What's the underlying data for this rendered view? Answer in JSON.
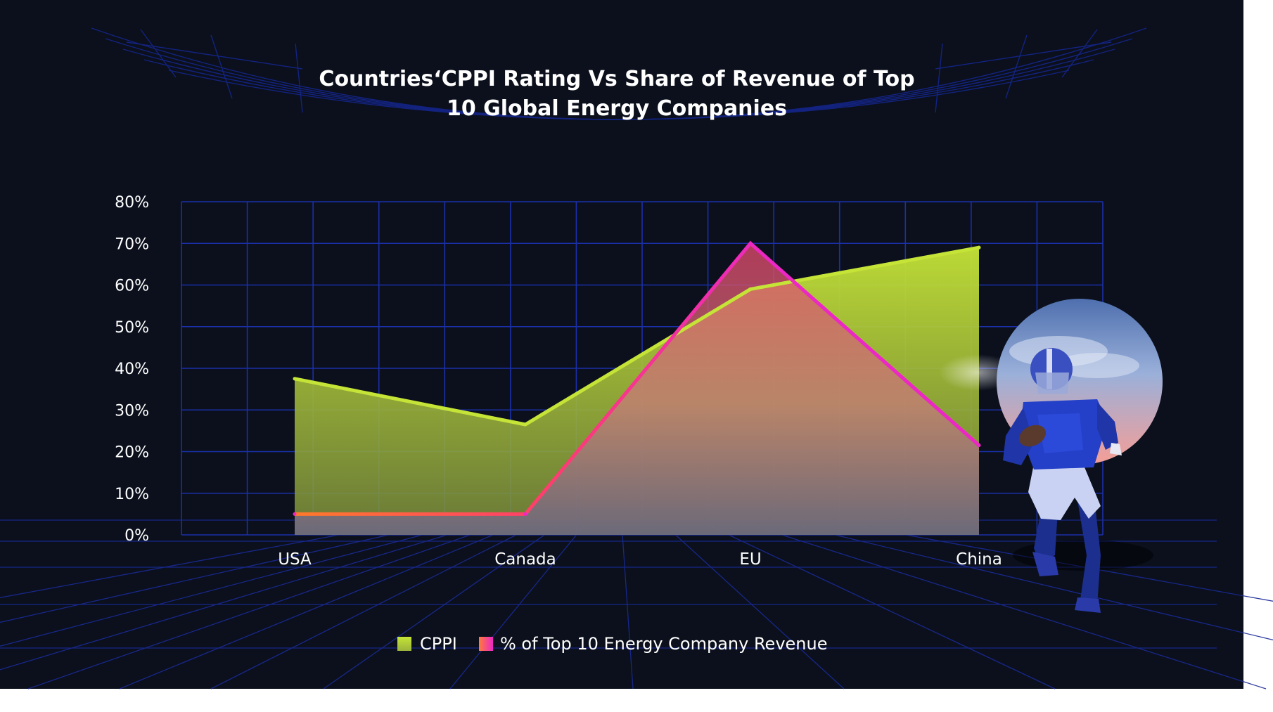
{
  "colors": {
    "background": "#0b101c",
    "grid": "#1b2fa8",
    "grid_floor": "#1a2a95",
    "cppi_line": "#c5e437",
    "cppi_fill_top": "#c5e437",
    "cppi_fill_bottom": "#7d8f3a",
    "revenue_line": "#ec27c6",
    "revenue_fill_top": "#ff6b5e",
    "revenue_fill_bottom": "#6f6a86",
    "text": "#ffffff"
  },
  "chart_data": {
    "type": "area",
    "title": "Countries‘CPPI Rating Vs Share of Revenue of Top 10 Global  Energy Companies",
    "title_lines": [
      "Countries‘CPPI Rating Vs Share of Revenue of Top",
      "10 Global  Energy Companies"
    ],
    "categories": [
      "USA",
      "Canada",
      "EU",
      "China"
    ],
    "yticks": [
      "0%",
      "10%",
      "20%",
      "30%",
      "40%",
      "50%",
      "60%",
      "70%",
      "80%"
    ],
    "ylim": [
      0,
      80
    ],
    "grid": true,
    "legend_position": "bottom-center",
    "series": [
      {
        "name": "CPPI",
        "values": [
          37.5,
          26.5,
          59,
          69
        ],
        "color": "#c5e437"
      },
      {
        "name": "% of Top 10 Energy Company Revenue",
        "values": [
          5,
          5,
          70,
          21.5
        ],
        "color": "#ec27c6"
      }
    ]
  },
  "decoration": {
    "icon": "football-player-icon"
  }
}
